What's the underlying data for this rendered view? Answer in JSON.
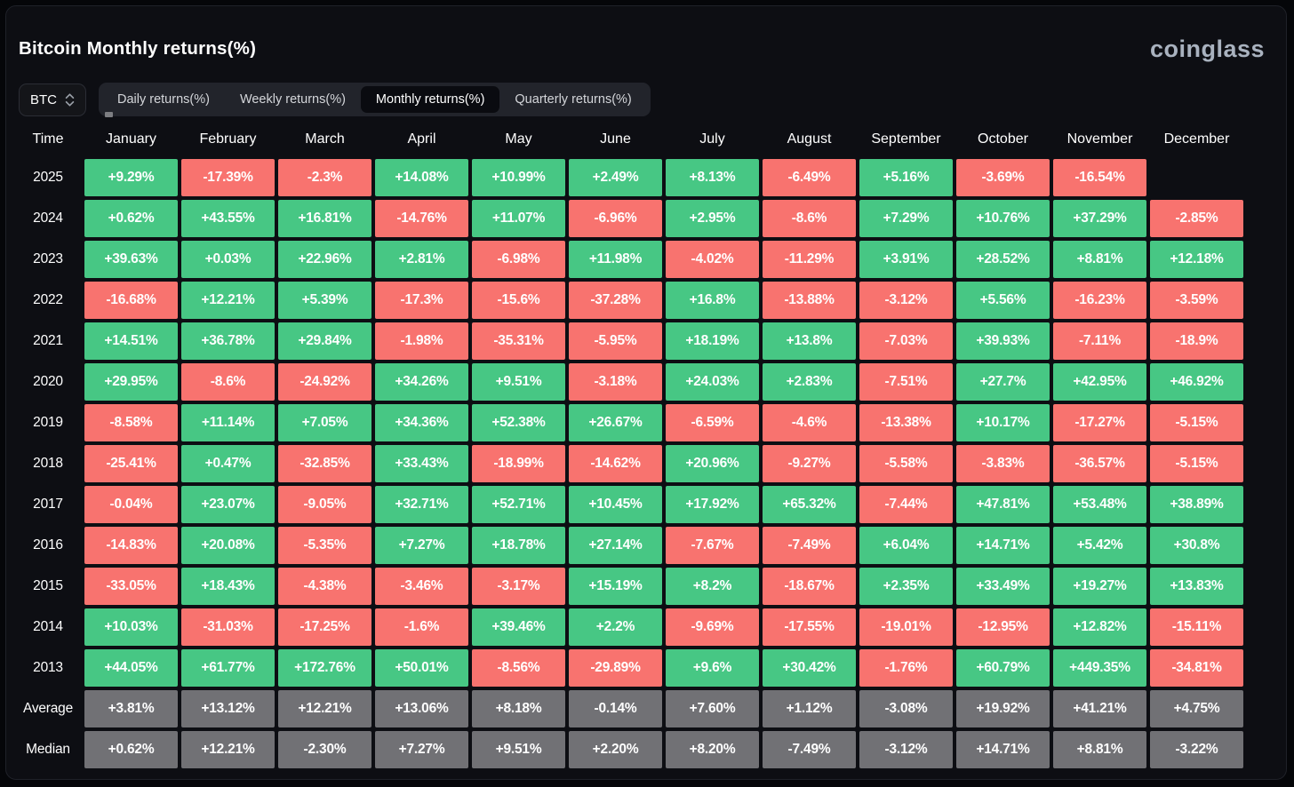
{
  "page": {
    "title": "Bitcoin Monthly returns(%)",
    "logo_text": "coinglass"
  },
  "controls": {
    "symbol_selector": {
      "value": "BTC",
      "icon": "sort-chevrons-icon"
    },
    "tabs": [
      {
        "label": "Daily returns(%)",
        "active": false
      },
      {
        "label": "Weekly returns(%)",
        "active": false
      },
      {
        "label": "Monthly returns(%)",
        "active": true
      },
      {
        "label": "Quarterly returns(%)",
        "active": false
      }
    ]
  },
  "table": {
    "columns": [
      "Time",
      "January",
      "February",
      "March",
      "April",
      "May",
      "June",
      "July",
      "August",
      "September",
      "October",
      "November",
      "December"
    ],
    "rows": [
      {
        "label": "2025",
        "kind": "year",
        "cells": [
          "+9.29%",
          "-17.39%",
          "-2.3%",
          "+14.08%",
          "+10.99%",
          "+2.49%",
          "+8.13%",
          "-6.49%",
          "+5.16%",
          "-3.69%",
          "-16.54%",
          null
        ]
      },
      {
        "label": "2024",
        "kind": "year",
        "cells": [
          "+0.62%",
          "+43.55%",
          "+16.81%",
          "-14.76%",
          "+11.07%",
          "-6.96%",
          "+2.95%",
          "-8.6%",
          "+7.29%",
          "+10.76%",
          "+37.29%",
          "-2.85%"
        ]
      },
      {
        "label": "2023",
        "kind": "year",
        "cells": [
          "+39.63%",
          "+0.03%",
          "+22.96%",
          "+2.81%",
          "-6.98%",
          "+11.98%",
          "-4.02%",
          "-11.29%",
          "+3.91%",
          "+28.52%",
          "+8.81%",
          "+12.18%"
        ]
      },
      {
        "label": "2022",
        "kind": "year",
        "cells": [
          "-16.68%",
          "+12.21%",
          "+5.39%",
          "-17.3%",
          "-15.6%",
          "-37.28%",
          "+16.8%",
          "-13.88%",
          "-3.12%",
          "+5.56%",
          "-16.23%",
          "-3.59%"
        ]
      },
      {
        "label": "2021",
        "kind": "year",
        "cells": [
          "+14.51%",
          "+36.78%",
          "+29.84%",
          "-1.98%",
          "-35.31%",
          "-5.95%",
          "+18.19%",
          "+13.8%",
          "-7.03%",
          "+39.93%",
          "-7.11%",
          "-18.9%"
        ]
      },
      {
        "label": "2020",
        "kind": "year",
        "cells": [
          "+29.95%",
          "-8.6%",
          "-24.92%",
          "+34.26%",
          "+9.51%",
          "-3.18%",
          "+24.03%",
          "+2.83%",
          "-7.51%",
          "+27.7%",
          "+42.95%",
          "+46.92%"
        ]
      },
      {
        "label": "2019",
        "kind": "year",
        "cells": [
          "-8.58%",
          "+11.14%",
          "+7.05%",
          "+34.36%",
          "+52.38%",
          "+26.67%",
          "-6.59%",
          "-4.6%",
          "-13.38%",
          "+10.17%",
          "-17.27%",
          "-5.15%"
        ]
      },
      {
        "label": "2018",
        "kind": "year",
        "cells": [
          "-25.41%",
          "+0.47%",
          "-32.85%",
          "+33.43%",
          "-18.99%",
          "-14.62%",
          "+20.96%",
          "-9.27%",
          "-5.58%",
          "-3.83%",
          "-36.57%",
          "-5.15%"
        ]
      },
      {
        "label": "2017",
        "kind": "year",
        "cells": [
          "-0.04%",
          "+23.07%",
          "-9.05%",
          "+32.71%",
          "+52.71%",
          "+10.45%",
          "+17.92%",
          "+65.32%",
          "-7.44%",
          "+47.81%",
          "+53.48%",
          "+38.89%"
        ]
      },
      {
        "label": "2016",
        "kind": "year",
        "cells": [
          "-14.83%",
          "+20.08%",
          "-5.35%",
          "+7.27%",
          "+18.78%",
          "+27.14%",
          "-7.67%",
          "-7.49%",
          "+6.04%",
          "+14.71%",
          "+5.42%",
          "+30.8%"
        ]
      },
      {
        "label": "2015",
        "kind": "year",
        "cells": [
          "-33.05%",
          "+18.43%",
          "-4.38%",
          "-3.46%",
          "-3.17%",
          "+15.19%",
          "+8.2%",
          "-18.67%",
          "+2.35%",
          "+33.49%",
          "+19.27%",
          "+13.83%"
        ]
      },
      {
        "label": "2014",
        "kind": "year",
        "cells": [
          "+10.03%",
          "-31.03%",
          "-17.25%",
          "-1.6%",
          "+39.46%",
          "+2.2%",
          "-9.69%",
          "-17.55%",
          "-19.01%",
          "-12.95%",
          "+12.82%",
          "-15.11%"
        ]
      },
      {
        "label": "2013",
        "kind": "year",
        "cells": [
          "+44.05%",
          "+61.77%",
          "+172.76%",
          "+50.01%",
          "-8.56%",
          "-29.89%",
          "+9.6%",
          "+30.42%",
          "-1.76%",
          "+60.79%",
          "+449.35%",
          "-34.81%"
        ]
      },
      {
        "label": "Average",
        "kind": "summary",
        "cells": [
          "+3.81%",
          "+13.12%",
          "+12.21%",
          "+13.06%",
          "+8.18%",
          "-0.14%",
          "+7.60%",
          "+1.12%",
          "-3.08%",
          "+19.92%",
          "+41.21%",
          "+4.75%"
        ]
      },
      {
        "label": "Median",
        "kind": "summary",
        "cells": [
          "+0.62%",
          "+12.21%",
          "-2.30%",
          "+7.27%",
          "+9.51%",
          "+2.20%",
          "+8.20%",
          "-7.49%",
          "-3.12%",
          "+14.71%",
          "+8.81%",
          "-3.22%"
        ]
      }
    ]
  },
  "colors": {
    "positive": "#47C784",
    "negative": "#F8736F",
    "neutral": "#717175",
    "background": "#0D0E13",
    "tab_bar": "#22242B",
    "active_tab": "#0A0B10",
    "logo": "#A9B2BF"
  },
  "chart_data": {
    "type": "heatmap",
    "title": "Bitcoin Monthly returns(%)",
    "unit": "percent",
    "columns": [
      "January",
      "February",
      "March",
      "April",
      "May",
      "June",
      "July",
      "August",
      "September",
      "October",
      "November",
      "December"
    ],
    "rows": [
      {
        "label": "2025",
        "values": [
          9.29,
          -17.39,
          -2.3,
          14.08,
          10.99,
          2.49,
          8.13,
          -6.49,
          5.16,
          -3.69,
          -16.54,
          null
        ]
      },
      {
        "label": "2024",
        "values": [
          0.62,
          43.55,
          16.81,
          -14.76,
          11.07,
          -6.96,
          2.95,
          -8.6,
          7.29,
          10.76,
          37.29,
          -2.85
        ]
      },
      {
        "label": "2023",
        "values": [
          39.63,
          0.03,
          22.96,
          2.81,
          -6.98,
          11.98,
          -4.02,
          -11.29,
          3.91,
          28.52,
          8.81,
          12.18
        ]
      },
      {
        "label": "2022",
        "values": [
          -16.68,
          12.21,
          5.39,
          -17.3,
          -15.6,
          -37.28,
          16.8,
          -13.88,
          -3.12,
          5.56,
          -16.23,
          -3.59
        ]
      },
      {
        "label": "2021",
        "values": [
          14.51,
          36.78,
          29.84,
          -1.98,
          -35.31,
          -5.95,
          18.19,
          13.8,
          -7.03,
          39.93,
          -7.11,
          -18.9
        ]
      },
      {
        "label": "2020",
        "values": [
          29.95,
          -8.6,
          -24.92,
          34.26,
          9.51,
          -3.18,
          24.03,
          2.83,
          -7.51,
          27.7,
          42.95,
          46.92
        ]
      },
      {
        "label": "2019",
        "values": [
          -8.58,
          11.14,
          7.05,
          34.36,
          52.38,
          26.67,
          -6.59,
          -4.6,
          -13.38,
          10.17,
          -17.27,
          -5.15
        ]
      },
      {
        "label": "2018",
        "values": [
          -25.41,
          0.47,
          -32.85,
          33.43,
          -18.99,
          -14.62,
          20.96,
          -9.27,
          -5.58,
          -3.83,
          -36.57,
          -5.15
        ]
      },
      {
        "label": "2017",
        "values": [
          -0.04,
          23.07,
          -9.05,
          32.71,
          52.71,
          10.45,
          17.92,
          65.32,
          -7.44,
          47.81,
          53.48,
          38.89
        ]
      },
      {
        "label": "2016",
        "values": [
          -14.83,
          20.08,
          -5.35,
          7.27,
          18.78,
          27.14,
          -7.67,
          -7.49,
          6.04,
          14.71,
          5.42,
          30.8
        ]
      },
      {
        "label": "2015",
        "values": [
          -33.05,
          18.43,
          -4.38,
          -3.46,
          -3.17,
          15.19,
          8.2,
          -18.67,
          2.35,
          33.49,
          19.27,
          13.83
        ]
      },
      {
        "label": "2014",
        "values": [
          10.03,
          -31.03,
          -17.25,
          -1.6,
          39.46,
          2.2,
          -9.69,
          -17.55,
          -19.01,
          -12.95,
          12.82,
          -15.11
        ]
      },
      {
        "label": "2013",
        "values": [
          44.05,
          61.77,
          172.76,
          50.01,
          -8.56,
          -29.89,
          9.6,
          30.42,
          -1.76,
          60.79,
          449.35,
          -34.81
        ]
      }
    ],
    "summary_rows": [
      {
        "label": "Average",
        "values": [
          3.81,
          13.12,
          12.21,
          13.06,
          8.18,
          -0.14,
          7.6,
          1.12,
          -3.08,
          19.92,
          41.21,
          4.75
        ]
      },
      {
        "label": "Median",
        "values": [
          0.62,
          12.21,
          -2.3,
          7.27,
          9.51,
          2.2,
          8.2,
          -7.49,
          -3.12,
          14.71,
          8.81,
          -3.22
        ]
      }
    ],
    "legend": "green = positive monthly return, red = negative monthly return, gray = summary statistic"
  }
}
